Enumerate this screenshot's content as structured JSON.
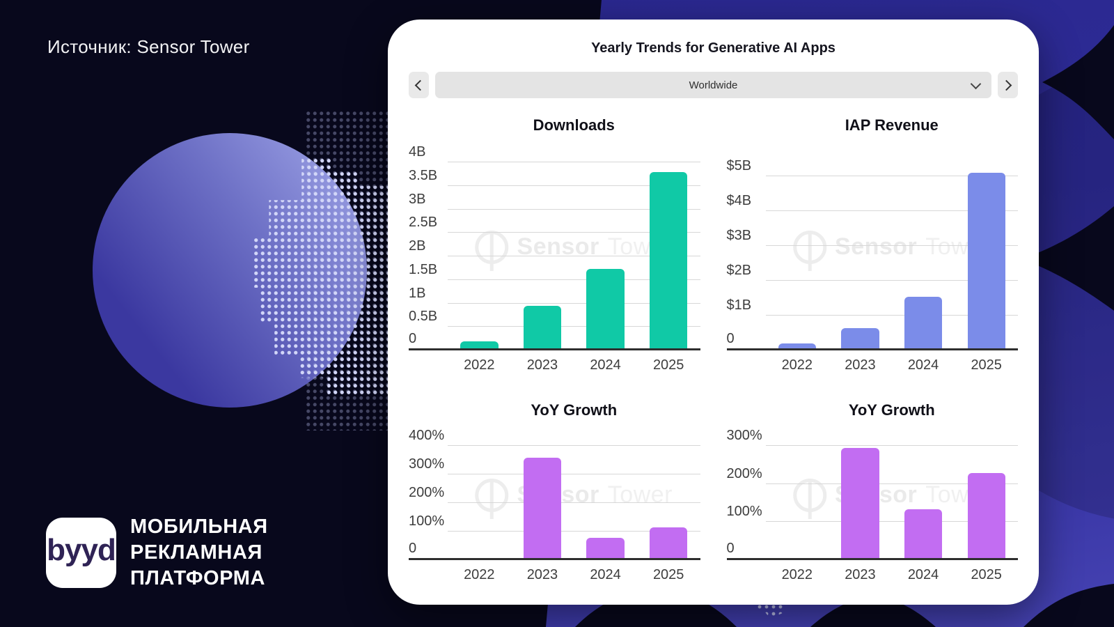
{
  "background": {
    "source_label": "Источник: Sensor Tower",
    "brand": {
      "logo_text": "byyd",
      "tagline_lines": [
        "МОБИЛЬНАЯ",
        "РЕКЛАМНАЯ",
        "ПЛАТФОРМА"
      ]
    },
    "colors": {
      "dark_navy": "#08081c",
      "indigo_panel": "#2e2b97",
      "circle_dark": "#3b38a0",
      "circle_light": "#999ee3",
      "dot_color": "#d2d6f8"
    }
  },
  "card": {
    "title": "Yearly Trends for Generative AI Apps",
    "region_selector": {
      "value": "Worldwide"
    },
    "watermark": {
      "bold_text": "Sensor",
      "light_text": "Tower"
    }
  },
  "chart_data": [
    {
      "type": "bar",
      "title": "Downloads",
      "categories": [
        "2022",
        "2023",
        "2024",
        "2025"
      ],
      "values": [
        0.2,
        0.95,
        1.73,
        3.8
      ],
      "unit": "billions of downloads",
      "bar_color": "#10c9a6",
      "yticks": [
        {
          "v": 0,
          "label": "0"
        },
        {
          "v": 0.5,
          "label": "0.5B"
        },
        {
          "v": 1,
          "label": "1B"
        },
        {
          "v": 1.5,
          "label": "1.5B"
        },
        {
          "v": 2,
          "label": "2B"
        },
        {
          "v": 2.5,
          "label": "2.5B"
        },
        {
          "v": 3,
          "label": "3B"
        },
        {
          "v": 3.5,
          "label": "3.5B"
        },
        {
          "v": 4,
          "label": "4B"
        }
      ],
      "ylim": [
        0,
        4.15
      ],
      "grid": true,
      "xlabel": "",
      "ylabel": ""
    },
    {
      "type": "bar",
      "title": "IAP Revenue",
      "categories": [
        "2022",
        "2023",
        "2024",
        "2025"
      ],
      "values": [
        0.2,
        0.65,
        1.55,
        5.1
      ],
      "unit": "billions of US dollars",
      "bar_color": "#7b8ce9",
      "yticks": [
        {
          "v": 0,
          "label": "0"
        },
        {
          "v": 1,
          "label": "$1B"
        },
        {
          "v": 2,
          "label": "$2B"
        },
        {
          "v": 3,
          "label": "$3B"
        },
        {
          "v": 4,
          "label": "$4B"
        },
        {
          "v": 5,
          "label": "$5B"
        }
      ],
      "ylim": [
        0,
        5.6
      ],
      "grid": true,
      "xlabel": "",
      "ylabel": ""
    },
    {
      "type": "bar",
      "title": "YoY Growth",
      "categories": [
        "2022",
        "2023",
        "2024",
        "2025"
      ],
      "values": [
        3,
        358,
        78,
        116
      ],
      "unit": "percent (downloads growth)",
      "bar_color": "#c26df2",
      "yticks": [
        {
          "v": 0,
          "label": "0"
        },
        {
          "v": 100,
          "label": "100%"
        },
        {
          "v": 200,
          "label": "200%"
        },
        {
          "v": 300,
          "label": "300%"
        },
        {
          "v": 400,
          "label": "400%"
        }
      ],
      "ylim": [
        0,
        430
      ],
      "grid": true,
      "xlabel": "",
      "ylabel": ""
    },
    {
      "type": "bar",
      "title": "YoY Growth",
      "categories": [
        "2022",
        "2023",
        "2024",
        "2025"
      ],
      "values": [
        3,
        295,
        134,
        228
      ],
      "unit": "percent (IAP revenue growth)",
      "bar_color": "#c26df2",
      "yticks": [
        {
          "v": 0,
          "label": "0"
        },
        {
          "v": 100,
          "label": "100%"
        },
        {
          "v": 200,
          "label": "200%"
        },
        {
          "v": 300,
          "label": "300%"
        }
      ],
      "ylim": [
        0,
        322
      ],
      "grid": true,
      "xlabel": "",
      "ylabel": ""
    }
  ]
}
